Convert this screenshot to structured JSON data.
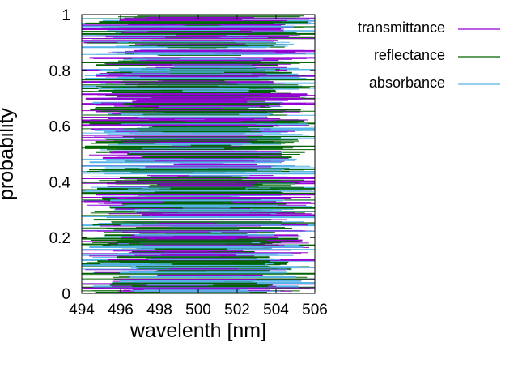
{
  "chart_data": {
    "type": "line",
    "title": "",
    "xlabel": "wavelenth [nm]",
    "ylabel": "probability",
    "xlim": [
      494,
      506
    ],
    "ylim": [
      0,
      1
    ],
    "xticks": [
      "494",
      "496",
      "498",
      "500",
      "502",
      "504",
      "506"
    ],
    "yticks": [
      "0",
      "0.2",
      "0.4",
      "0.6",
      "0.8",
      "1"
    ],
    "grid": false,
    "legend_position": "right",
    "series": [
      {
        "name": "transmittance",
        "color": "#9400d3"
      },
      {
        "name": "reflectance",
        "color": "#006400"
      },
      {
        "name": "absorbance",
        "color": "#56b4e9"
      }
    ],
    "description_of_marks": "dense horizontal segments at every probability level, spanning roughly 494 to 506 nm, concentrated near 500 nm"
  }
}
